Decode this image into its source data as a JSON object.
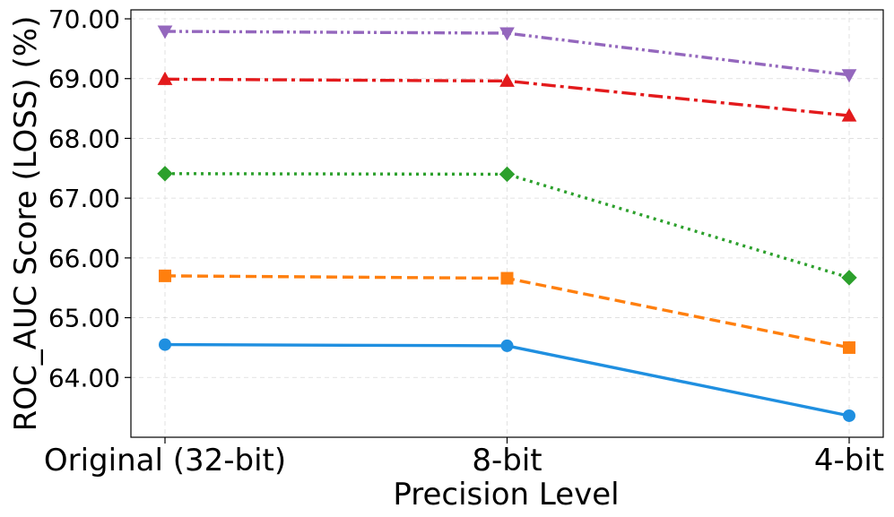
{
  "chart_data": {
    "type": "line",
    "title": "",
    "xlabel": "Precision Level",
    "ylabel": "ROC_AUC Score (LOSS) (%)",
    "categories": [
      "Original (32-bit)",
      "8-bit",
      "4-bit"
    ],
    "ylim": [
      63.0,
      70.15
    ],
    "yticks": [
      64.0,
      65.0,
      66.0,
      67.0,
      68.0,
      69.0,
      70.0
    ],
    "ytick_labels": [
      "64.00",
      "65.00",
      "66.00",
      "67.00",
      "68.00",
      "69.00",
      "70.00"
    ],
    "grid": true,
    "legend": null,
    "series": [
      {
        "values": [
          64.55,
          64.53,
          63.36
        ],
        "color": "#1f8fe0",
        "marker": "circle",
        "dash": "solid"
      },
      {
        "values": [
          65.7,
          65.66,
          64.5
        ],
        "color": "#ff7f0e",
        "marker": "square",
        "dash": "dashed"
      },
      {
        "values": [
          67.41,
          67.4,
          65.67
        ],
        "color": "#2ca02c",
        "marker": "diamond",
        "dash": "dotted"
      },
      {
        "values": [
          68.99,
          68.96,
          68.38
        ],
        "color": "#e31a1c",
        "marker": "triangle-up",
        "dash": "dashdot"
      },
      {
        "values": [
          69.79,
          69.76,
          69.06
        ],
        "color": "#9467bd",
        "marker": "triangle-down",
        "dash": "dashdotdot"
      }
    ]
  }
}
